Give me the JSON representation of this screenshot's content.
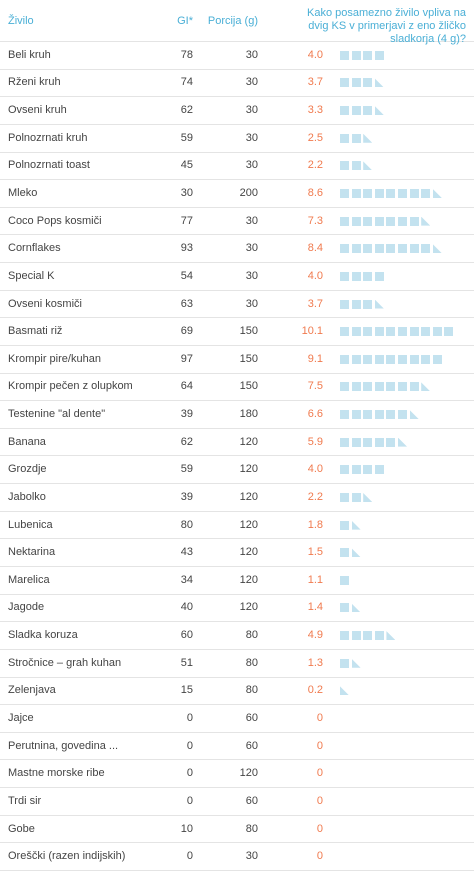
{
  "header": [
    "Živilo",
    "GI*",
    "Porcija (g)",
    "Kako posamezno živilo vpliva na dvig KS v primerjavi z eno žličko sladkorja (4 g)?"
  ],
  "rows": [
    [
      "Beli kruh",
      78,
      30,
      "4.0"
    ],
    [
      "Rženi kruh",
      74,
      30,
      "3.7"
    ],
    [
      "Ovseni kruh",
      62,
      30,
      "3.3"
    ],
    [
      "Polnozrnati kruh",
      59,
      30,
      "2.5"
    ],
    [
      "Polnozrnati toast",
      45,
      30,
      "2.2"
    ],
    [
      "Mleko",
      30,
      200,
      "8.6"
    ],
    [
      "Coco Pops kosmiči",
      77,
      30,
      "7.3"
    ],
    [
      "Cornflakes",
      93,
      30,
      "8.4"
    ],
    [
      "Special K",
      54,
      30,
      "4.0"
    ],
    [
      "Ovseni kosmiči",
      63,
      30,
      "3.7"
    ],
    [
      "Basmati riž",
      69,
      150,
      "10.1"
    ],
    [
      "Krompir pire/kuhan",
      97,
      150,
      "9.1"
    ],
    [
      "Krompir pečen z olupkom",
      64,
      150,
      "7.5"
    ],
    [
      "Testenine \"al dente\"",
      39,
      180,
      "6.6"
    ],
    [
      "Banana",
      62,
      120,
      "5.9"
    ],
    [
      "Grozdje",
      59,
      120,
      "4.0"
    ],
    [
      "Jabolko",
      39,
      120,
      "2.2"
    ],
    [
      "Lubenica",
      80,
      120,
      "1.8"
    ],
    [
      "Nektarina",
      43,
      120,
      "1.5"
    ],
    [
      "Marelica",
      34,
      120,
      "1.1"
    ],
    [
      "Jagode",
      40,
      120,
      "1.4"
    ],
    [
      "Sladka koruza",
      60,
      80,
      "4.9"
    ],
    [
      "Stročnice – grah kuhan",
      51,
      80,
      "1.3"
    ],
    [
      "Zelenjava",
      15,
      80,
      "0.2"
    ],
    [
      "Jajce",
      0,
      60,
      "0"
    ],
    [
      "Perutnina, govedina ...",
      0,
      60,
      "0"
    ],
    [
      "Mastne morske ribe",
      0,
      120,
      "0"
    ],
    [
      "Trdi sir",
      0,
      60,
      "0"
    ],
    [
      "Gobe",
      10,
      80,
      "0"
    ],
    [
      "Oreščki (razen indijskih)",
      0,
      30,
      "0"
    ]
  ]
}
